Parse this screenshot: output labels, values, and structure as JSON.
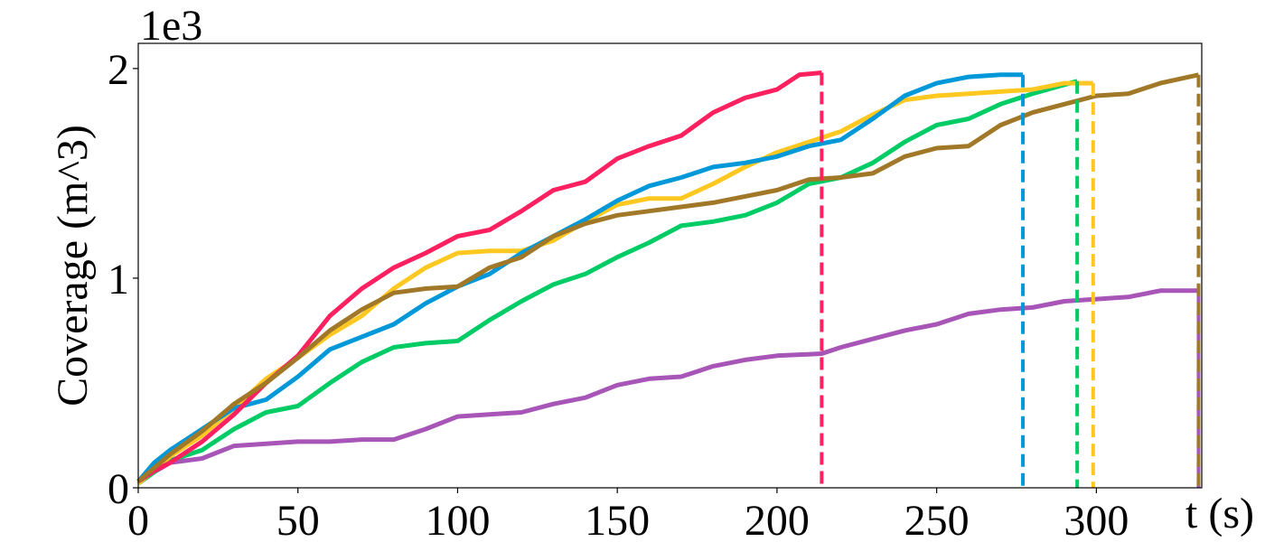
{
  "chart_data": {
    "type": "line",
    "y_label": "Coverage (m^3)",
    "x_label": "t (s)",
    "y_offset_label": "1e3",
    "xlim": [
      0,
      333
    ],
    "ylim": [
      0,
      2.12
    ],
    "xticks": [
      0,
      50,
      100,
      150,
      200,
      250,
      300
    ],
    "yticks": [
      0,
      1,
      2
    ],
    "grid": false,
    "end_markers": "dashed",
    "series": [
      {
        "color": "#a855b8",
        "x": [
          0,
          10,
          20,
          30,
          40,
          50,
          60,
          70,
          80,
          90,
          100,
          110,
          120,
          130,
          140,
          150,
          160,
          170,
          180,
          190,
          200,
          214,
          220,
          230,
          240,
          250,
          260,
          270,
          280,
          290,
          300,
          310,
          320,
          332
        ],
        "values": [
          0.03,
          0.12,
          0.14,
          0.2,
          0.21,
          0.22,
          0.22,
          0.23,
          0.23,
          0.28,
          0.34,
          0.35,
          0.36,
          0.4,
          0.43,
          0.49,
          0.52,
          0.53,
          0.58,
          0.61,
          0.63,
          0.64,
          0.67,
          0.71,
          0.75,
          0.78,
          0.83,
          0.85,
          0.86,
          0.89,
          0.9,
          0.91,
          0.94,
          0.94
        ]
      },
      {
        "color": "#00cc66",
        "x": [
          0,
          10,
          20,
          30,
          40,
          50,
          60,
          70,
          80,
          90,
          100,
          110,
          120,
          130,
          140,
          150,
          160,
          170,
          180,
          190,
          200,
          210,
          220,
          230,
          240,
          250,
          260,
          270,
          280,
          294
        ],
        "values": [
          0.02,
          0.13,
          0.18,
          0.28,
          0.36,
          0.39,
          0.5,
          0.6,
          0.67,
          0.69,
          0.7,
          0.8,
          0.89,
          0.97,
          1.02,
          1.1,
          1.17,
          1.25,
          1.27,
          1.3,
          1.36,
          1.45,
          1.48,
          1.55,
          1.65,
          1.73,
          1.76,
          1.83,
          1.88,
          1.94
        ]
      },
      {
        "color": "#ffc820",
        "x": [
          0,
          10,
          20,
          30,
          40,
          50,
          60,
          70,
          80,
          90,
          100,
          110,
          120,
          130,
          140,
          150,
          160,
          170,
          180,
          190,
          200,
          210,
          220,
          230,
          240,
          250,
          260,
          270,
          280,
          290,
          299
        ],
        "values": [
          0.02,
          0.15,
          0.25,
          0.38,
          0.52,
          0.62,
          0.73,
          0.82,
          0.95,
          1.05,
          1.12,
          1.13,
          1.13,
          1.18,
          1.27,
          1.35,
          1.38,
          1.38,
          1.45,
          1.53,
          1.6,
          1.65,
          1.7,
          1.78,
          1.85,
          1.87,
          1.88,
          1.89,
          1.9,
          1.93,
          1.93
        ]
      },
      {
        "color": "#0098d8",
        "x": [
          0,
          5,
          10,
          20,
          30,
          40,
          50,
          60,
          70,
          80,
          90,
          100,
          110,
          120,
          130,
          140,
          150,
          160,
          170,
          180,
          190,
          200,
          210,
          220,
          230,
          240,
          250,
          260,
          270,
          277
        ],
        "values": [
          0.03,
          0.12,
          0.18,
          0.28,
          0.38,
          0.42,
          0.53,
          0.66,
          0.72,
          0.78,
          0.88,
          0.96,
          1.02,
          1.12,
          1.2,
          1.28,
          1.37,
          1.44,
          1.48,
          1.53,
          1.55,
          1.58,
          1.63,
          1.66,
          1.76,
          1.87,
          1.93,
          1.96,
          1.97,
          1.97
        ]
      },
      {
        "color": "#ff2060",
        "x": [
          0,
          5,
          10,
          20,
          30,
          40,
          50,
          60,
          70,
          80,
          90,
          100,
          110,
          120,
          130,
          140,
          150,
          160,
          170,
          180,
          190,
          200,
          207,
          214
        ],
        "values": [
          0.03,
          0.08,
          0.12,
          0.22,
          0.35,
          0.5,
          0.63,
          0.82,
          0.95,
          1.05,
          1.12,
          1.2,
          1.23,
          1.32,
          1.42,
          1.46,
          1.57,
          1.63,
          1.68,
          1.79,
          1.86,
          1.9,
          1.97,
          1.98
        ]
      },
      {
        "color": "#a07828",
        "x": [
          0,
          10,
          20,
          30,
          40,
          50,
          60,
          70,
          80,
          90,
          100,
          110,
          120,
          130,
          140,
          150,
          160,
          170,
          180,
          190,
          200,
          210,
          220,
          230,
          240,
          250,
          260,
          270,
          280,
          290,
          300,
          310,
          320,
          332
        ],
        "values": [
          0.03,
          0.16,
          0.27,
          0.4,
          0.5,
          0.62,
          0.75,
          0.85,
          0.93,
          0.95,
          0.96,
          1.05,
          1.1,
          1.2,
          1.26,
          1.3,
          1.32,
          1.34,
          1.36,
          1.39,
          1.42,
          1.47,
          1.48,
          1.5,
          1.58,
          1.62,
          1.63,
          1.73,
          1.79,
          1.83,
          1.87,
          1.88,
          1.93,
          1.97
        ]
      }
    ]
  }
}
